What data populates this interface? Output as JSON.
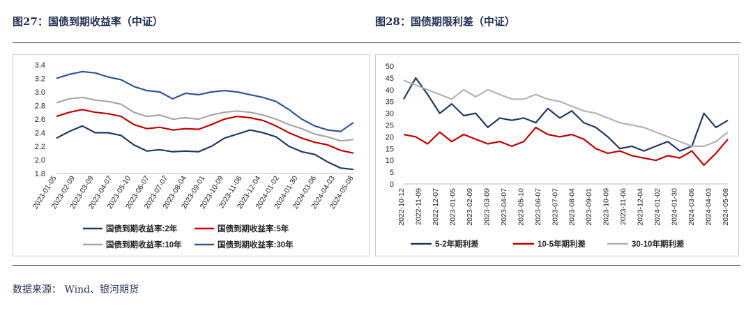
{
  "figures": [
    {
      "title": "图27：国债到期收益率（中证）"
    },
    {
      "title": "图28：国债期限利差（中证）"
    }
  ],
  "source": "数据来源： Wind、银河期货",
  "chart_data": [
    {
      "type": "line",
      "title": "国债到期收益率（中证）",
      "ylim": [
        1.8,
        3.4
      ],
      "yticks": [
        "3.4",
        "3.2",
        "3.0",
        "2.8",
        "2.6",
        "2.4",
        "2.2",
        "2.0",
        "1.8"
      ],
      "x_tick_labels": [
        "2023-01-05",
        "2023-02-09",
        "2023-03-09",
        "2023-04-07",
        "2023-05-10",
        "2023-06-07",
        "2023-07-07",
        "2023-08-04",
        "2023-09-01",
        "2023-10-09",
        "2023-11-06",
        "2023-12-04",
        "2024-01-02",
        "2024-01-30",
        "2024-03-06",
        "2024-04-03",
        "2024-05-08"
      ],
      "series": [
        {
          "name": "国债到期收益率:2年",
          "color": "#1f3864",
          "values": [
            2.32,
            2.42,
            2.5,
            2.4,
            2.4,
            2.36,
            2.22,
            2.13,
            2.15,
            2.12,
            2.13,
            2.12,
            2.2,
            2.32,
            2.38,
            2.44,
            2.4,
            2.34,
            2.2,
            2.12,
            2.08,
            1.97,
            1.88,
            1.86
          ]
        },
        {
          "name": "国债到期收益率:5年",
          "color": "#c00000",
          "values": [
            2.64,
            2.7,
            2.74,
            2.7,
            2.68,
            2.64,
            2.52,
            2.46,
            2.48,
            2.44,
            2.46,
            2.45,
            2.52,
            2.6,
            2.64,
            2.62,
            2.58,
            2.5,
            2.4,
            2.32,
            2.26,
            2.22,
            2.14,
            2.1
          ]
        },
        {
          "name": "国债到期收益率:10年",
          "color": "#a6a6a6",
          "values": [
            2.84,
            2.9,
            2.92,
            2.88,
            2.86,
            2.82,
            2.7,
            2.64,
            2.66,
            2.6,
            2.62,
            2.6,
            2.66,
            2.7,
            2.72,
            2.7,
            2.66,
            2.6,
            2.52,
            2.46,
            2.38,
            2.34,
            2.28,
            2.3
          ]
        },
        {
          "name": "国债到期收益率:30年",
          "color": "#2f5597",
          "values": [
            3.2,
            3.26,
            3.3,
            3.28,
            3.22,
            3.18,
            3.08,
            3.02,
            3.0,
            2.9,
            2.98,
            2.96,
            3.0,
            3.02,
            3.0,
            2.96,
            2.92,
            2.86,
            2.74,
            2.6,
            2.5,
            2.44,
            2.42,
            2.55
          ]
        }
      ]
    },
    {
      "type": "line",
      "title": "国债期限利差（中证）",
      "ylim": [
        0,
        50
      ],
      "yticks": [
        "50",
        "45",
        "40",
        "35",
        "30",
        "25",
        "20",
        "15",
        "10",
        "5",
        "0"
      ],
      "x_tick_labels": [
        "2022-10-12",
        "2022-11-09",
        "2022-12-07",
        "2023-01-05",
        "2023-02-09",
        "2023-03-09",
        "2023-04-07",
        "2023-05-10",
        "2023-06-07",
        "2023-07-07",
        "2023-08-04",
        "2023-09-01",
        "2023-10-09",
        "2023-11-06",
        "2023-12-04",
        "2024-01-02",
        "2024-01-30",
        "2024-03-06",
        "2024-04-03",
        "2024-05-08"
      ],
      "series": [
        {
          "name": "5-2年期利差",
          "color": "#1f3864",
          "values": [
            36,
            45,
            38,
            30,
            34,
            29,
            30,
            24,
            28,
            27,
            28,
            26,
            32,
            28,
            31,
            26,
            24,
            20,
            15,
            16,
            14,
            16,
            18,
            14,
            16,
            30,
            24,
            27
          ]
        },
        {
          "name": "10-5年期利差",
          "color": "#c00000",
          "values": [
            21,
            20,
            17,
            22,
            18,
            21,
            19,
            17,
            18,
            16,
            18,
            24,
            21,
            20,
            21,
            19,
            15,
            13,
            14,
            12,
            11,
            10,
            12,
            11,
            14,
            8,
            13,
            19
          ]
        },
        {
          "name": "30-10年期利差",
          "color": "#b3b3b3",
          "values": [
            44,
            42,
            40,
            38,
            36,
            40,
            37,
            40,
            38,
            36,
            36,
            38,
            36,
            35,
            33,
            31,
            30,
            28,
            26,
            25,
            24,
            22,
            20,
            18,
            16,
            16,
            18,
            22
          ]
        }
      ]
    }
  ]
}
